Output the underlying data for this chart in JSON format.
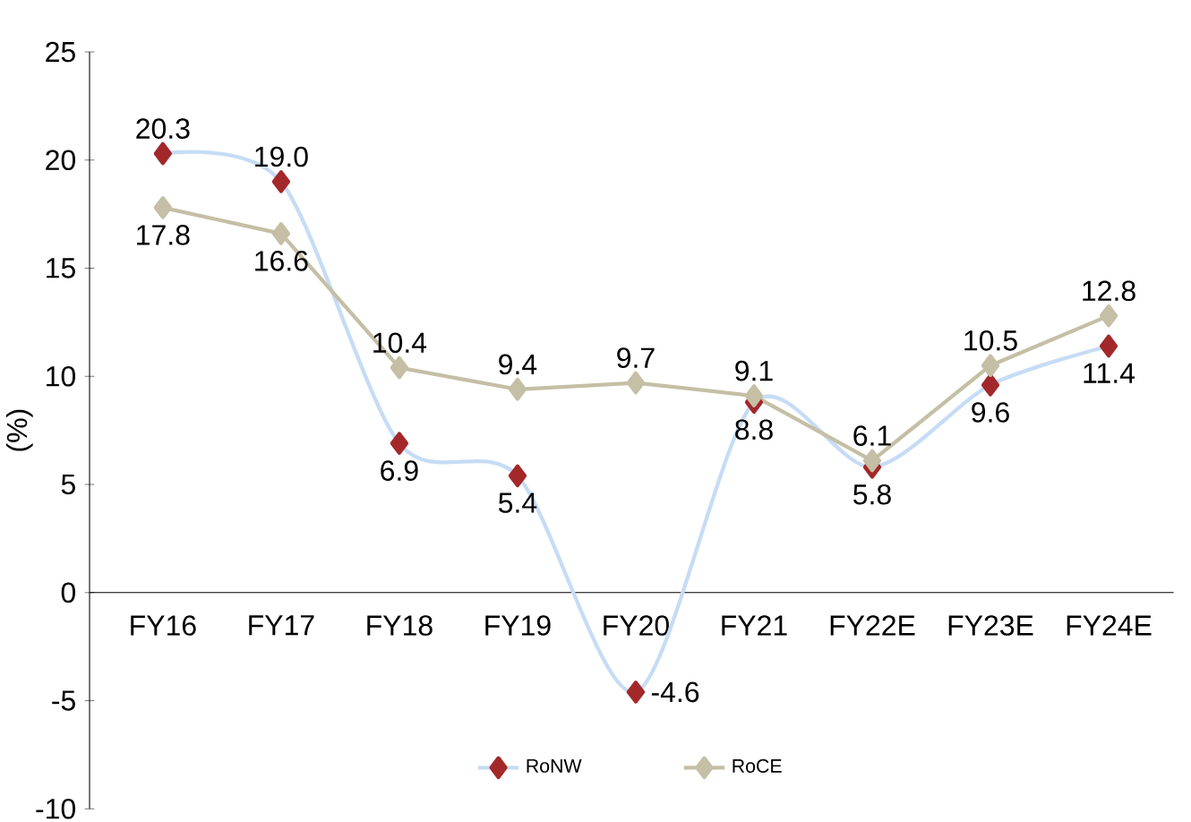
{
  "chart_data": {
    "type": "line",
    "ylabel": "(%)",
    "categories": [
      "FY16",
      "FY17",
      "FY18",
      "FY19",
      "FY20",
      "FY21",
      "FY22E",
      "FY23E",
      "FY24E"
    ],
    "series": [
      {
        "name": "RoNW",
        "color": "#a3282a",
        "values": [
          20.3,
          19.0,
          6.9,
          5.4,
          -4.6,
          8.8,
          5.8,
          9.6,
          11.4
        ],
        "value_labels": [
          "20.3",
          "19.0",
          "6.9",
          "5.4",
          "-4.6",
          "8.8",
          "5.8",
          "9.6",
          "11.4"
        ]
      },
      {
        "name": "RoCE",
        "color": "#c4bfa5",
        "values": [
          17.8,
          16.6,
          10.4,
          9.4,
          9.7,
          9.1,
          6.1,
          10.5,
          12.8
        ],
        "value_labels": [
          "17.8",
          "16.6",
          "10.4",
          "9.4",
          "9.7",
          "9.1",
          "6.1",
          "10.5",
          "12.8"
        ]
      }
    ],
    "ylim": [
      -10,
      25
    ],
    "yticks": [
      -10,
      -5,
      0,
      5,
      10,
      15,
      20,
      25
    ],
    "legend": "bottom",
    "marker": "diamond",
    "grid": false
  }
}
